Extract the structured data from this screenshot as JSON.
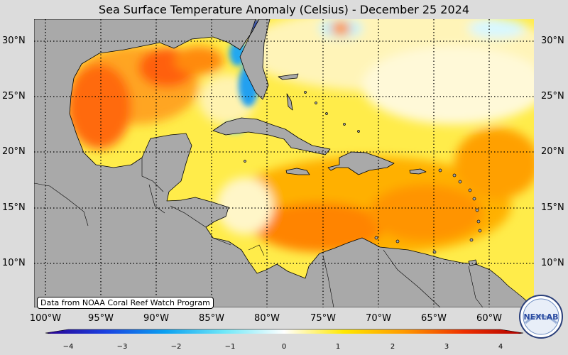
{
  "title": "Sea Surface Temperature Anomaly (Celsius) - December 25 2024",
  "credit": "Data from NOAA Coral Reef Watch Program",
  "latitude_labels": [
    "30°N",
    "25°N",
    "20°N",
    "15°N",
    "10°N"
  ],
  "longitude_labels": [
    "100°W",
    "95°W",
    "90°W",
    "85°W",
    "80°W",
    "75°W",
    "70°W",
    "65°W",
    "60°W"
  ],
  "colorbar": {
    "min": -4,
    "max": 4,
    "tick_labels": [
      "−4",
      "−3",
      "−2",
      "−1",
      "0",
      "1",
      "2",
      "3",
      "4"
    ],
    "colors": [
      "#2a0090",
      "#1a40e0",
      "#0aa0f0",
      "#70e8f8",
      "#ffffff",
      "#ffe800",
      "#ff9a00",
      "#ee3000",
      "#b00000"
    ]
  },
  "colors": {
    "land": "#a9a9a9",
    "background": "#dcdcdc",
    "coastline": "#000000",
    "gridline": "#000000"
  },
  "logo": {
    "text": "NEXLAB"
  }
}
